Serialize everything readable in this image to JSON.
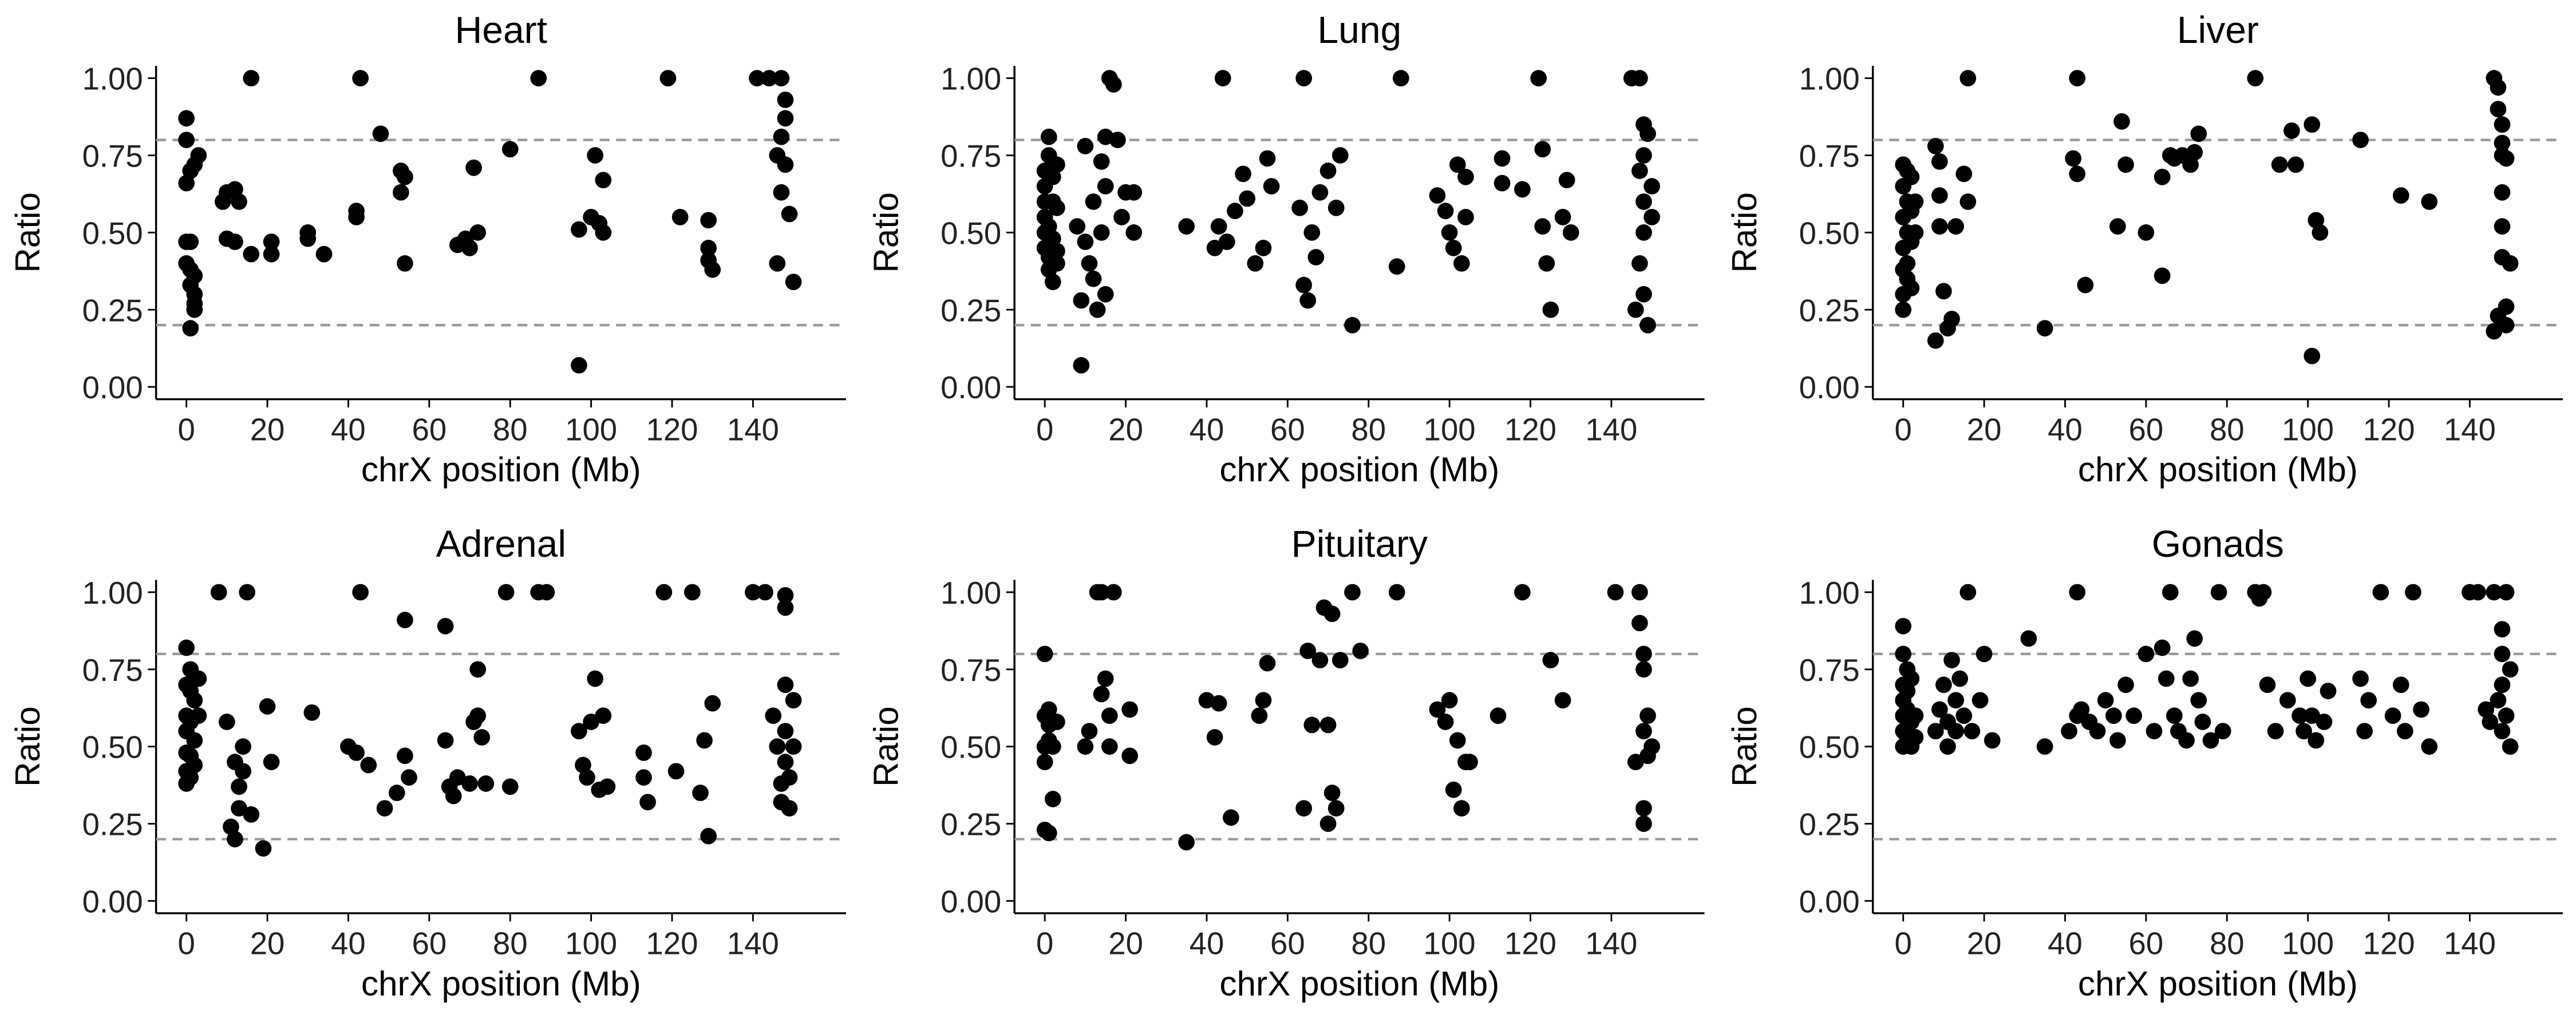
{
  "chart_data": [
    {
      "type": "scatter",
      "title": "Heart",
      "xlabel": "chrX position (Mb)",
      "ylabel": "Ratio",
      "color": "#000000",
      "x": [
        0,
        0,
        1,
        0,
        2,
        3,
        0,
        1,
        0,
        1,
        2,
        1,
        2,
        2,
        2,
        1,
        16,
        9,
        10,
        12,
        13,
        10,
        12,
        16,
        21,
        21,
        30,
        30,
        34,
        42,
        42,
        43,
        48,
        53,
        54,
        53,
        54,
        67,
        69,
        70,
        71,
        72,
        80,
        87,
        97,
        97,
        100,
        101,
        102,
        103,
        103,
        119,
        122,
        129,
        129,
        129,
        130,
        141,
        144,
        147,
        148,
        148,
        147,
        146,
        148,
        147,
        149,
        146,
        150
      ],
      "y": [
        0.87,
        0.8,
        0.7,
        0.66,
        0.72,
        0.75,
        0.47,
        0.47,
        0.4,
        0.38,
        0.36,
        0.33,
        0.3,
        0.27,
        0.25,
        0.19,
        1.0,
        0.6,
        0.63,
        0.64,
        0.6,
        0.48,
        0.47,
        0.43,
        0.47,
        0.43,
        0.5,
        0.48,
        0.43,
        0.57,
        0.55,
        1.0,
        0.82,
        0.7,
        0.68,
        0.63,
        0.4,
        0.46,
        0.48,
        0.45,
        0.71,
        0.5,
        0.77,
        1.0,
        0.07,
        0.51,
        0.55,
        0.75,
        0.53,
        0.67,
        0.5,
        1.0,
        0.55,
        0.54,
        0.45,
        0.41,
        0.38,
        1.0,
        1.0,
        1.0,
        0.93,
        0.87,
        0.81,
        0.75,
        0.72,
        0.63,
        0.56,
        0.4,
        0.34
      ],
      "xlim": [
        -7.5,
        163
      ],
      "ylim": [
        -0.04,
        1.04
      ],
      "xticks": [
        0,
        20,
        40,
        60,
        80,
        100,
        120,
        140
      ],
      "yticks": [
        {
          "value": 0,
          "label": "0.00"
        },
        {
          "value": 0.25,
          "label": "0.25"
        },
        {
          "value": 0.5,
          "label": "0.50"
        },
        {
          "value": 0.75,
          "label": "0.75"
        },
        {
          "value": 1,
          "label": "1.00"
        }
      ],
      "hlines": [
        0.2,
        0.8
      ]
    },
    {
      "type": "scatter",
      "title": "Lung",
      "xlabel": "chrX position (Mb)",
      "ylabel": "Ratio",
      "color": "#000000",
      "x": [
        0,
        0,
        0,
        0,
        0,
        0,
        1,
        1,
        1,
        1,
        1,
        2,
        2,
        2,
        2,
        3,
        3,
        3,
        3,
        8,
        9,
        9,
        10,
        10,
        11,
        12,
        12,
        13,
        14,
        14,
        15,
        15,
        15,
        16,
        17,
        18,
        19,
        20,
        22,
        22,
        35,
        42,
        43,
        44,
        45,
        47,
        49,
        50,
        52,
        54,
        55,
        56,
        63,
        64,
        64,
        65,
        66,
        67,
        68,
        70,
        72,
        73,
        76,
        87,
        88,
        97,
        99,
        100,
        101,
        102,
        103,
        104,
        104,
        113,
        113,
        118,
        122,
        123,
        123,
        124,
        125,
        128,
        129,
        130,
        145,
        146,
        147,
        147,
        147,
        148,
        148,
        148,
        148,
        148,
        149,
        149,
        150,
        150
      ],
      "y": [
        0.7,
        0.65,
        0.6,
        0.55,
        0.5,
        0.45,
        0.81,
        0.75,
        0.52,
        0.42,
        0.38,
        0.68,
        0.6,
        0.48,
        0.34,
        0.72,
        0.58,
        0.44,
        0.4,
        0.52,
        0.07,
        0.28,
        0.47,
        0.78,
        0.4,
        0.6,
        0.35,
        0.25,
        0.5,
        0.73,
        0.81,
        0.65,
        0.3,
        1.0,
        0.98,
        0.8,
        0.55,
        0.63,
        0.63,
        0.5,
        0.52,
        0.45,
        0.52,
        1.0,
        0.47,
        0.57,
        0.69,
        0.61,
        0.4,
        0.45,
        0.74,
        0.65,
        0.58,
        0.33,
        1.0,
        0.28,
        0.5,
        0.42,
        0.63,
        0.7,
        0.58,
        0.75,
        0.2,
        0.39,
        1.0,
        0.62,
        0.57,
        0.5,
        0.45,
        0.72,
        0.4,
        0.55,
        0.68,
        0.74,
        0.66,
        0.64,
        1.0,
        0.77,
        0.52,
        0.4,
        0.25,
        0.55,
        0.67,
        0.5,
        1.0,
        0.25,
        0.7,
        0.4,
        1.0,
        0.85,
        0.75,
        0.6,
        0.5,
        0.3,
        0.2,
        0.82,
        0.65,
        0.55
      ],
      "xlim": [
        -7.5,
        163
      ],
      "ylim": [
        -0.04,
        1.04
      ],
      "xticks": [
        0,
        20,
        40,
        60,
        80,
        100,
        120,
        140
      ],
      "yticks": [
        {
          "value": 0,
          "label": "0.00"
        },
        {
          "value": 0.25,
          "label": "0.25"
        },
        {
          "value": 0.5,
          "label": "0.50"
        },
        {
          "value": 0.75,
          "label": "0.75"
        },
        {
          "value": 1,
          "label": "1.00"
        }
      ],
      "hlines": [
        0.2,
        0.8
      ]
    },
    {
      "type": "scatter",
      "title": "Liver",
      "xlabel": "chrX position (Mb)",
      "ylabel": "Ratio",
      "color": "#000000",
      "x": [
        0,
        0,
        0,
        0,
        0,
        0,
        0,
        1,
        1,
        1,
        1,
        1,
        2,
        2,
        2,
        2,
        3,
        3,
        8,
        8,
        9,
        9,
        9,
        10,
        11,
        12,
        13,
        15,
        16,
        16,
        35,
        42,
        43,
        43,
        45,
        53,
        54,
        55,
        60,
        64,
        64,
        66,
        67,
        69,
        71,
        72,
        73,
        87,
        93,
        96,
        97,
        101,
        101,
        102,
        103,
        113,
        123,
        130,
        146,
        146,
        147,
        147,
        147,
        148,
        148,
        148,
        148,
        148,
        148,
        149,
        149,
        149,
        150
      ],
      "y": [
        0.72,
        0.65,
        0.55,
        0.45,
        0.38,
        0.3,
        0.25,
        0.7,
        0.6,
        0.5,
        0.4,
        0.35,
        0.68,
        0.57,
        0.47,
        0.32,
        0.6,
        0.5,
        0.78,
        0.15,
        0.73,
        0.62,
        0.52,
        0.31,
        0.19,
        0.22,
        0.52,
        0.69,
        0.6,
        1.0,
        0.19,
        0.74,
        0.69,
        1.0,
        0.33,
        0.52,
        0.86,
        0.72,
        0.5,
        0.36,
        0.68,
        0.75,
        0.74,
        0.75,
        0.72,
        0.76,
        0.82,
        1.0,
        0.72,
        0.83,
        0.72,
        0.1,
        0.85,
        0.54,
        0.5,
        0.8,
        0.62,
        0.6,
        0.18,
        1.0,
        0.97,
        0.9,
        0.23,
        0.85,
        0.79,
        0.75,
        0.63,
        0.52,
        0.42,
        0.26,
        0.2,
        0.74,
        0.4
      ],
      "xlim": [
        -7.5,
        163
      ],
      "ylim": [
        -0.04,
        1.04
      ],
      "xticks": [
        0,
        20,
        40,
        60,
        80,
        100,
        120,
        140
      ],
      "yticks": [
        {
          "value": 0,
          "label": "0.00"
        },
        {
          "value": 0.25,
          "label": "0.25"
        },
        {
          "value": 0.5,
          "label": "0.50"
        },
        {
          "value": 0.75,
          "label": "0.75"
        },
        {
          "value": 1,
          "label": "1.00"
        }
      ],
      "hlines": [
        0.2,
        0.8
      ]
    },
    {
      "type": "scatter",
      "title": "Adrenal",
      "xlabel": "chrX position (Mb)",
      "ylabel": "Ratio",
      "color": "#000000",
      "x": [
        0,
        0,
        0,
        0,
        0,
        0,
        0,
        1,
        1,
        1,
        1,
        1,
        2,
        2,
        2,
        3,
        3,
        8,
        10,
        11,
        12,
        12,
        13,
        13,
        14,
        14,
        15,
        16,
        19,
        20,
        21,
        31,
        40,
        42,
        43,
        45,
        49,
        52,
        54,
        54,
        55,
        64,
        64,
        65,
        66,
        67,
        70,
        71,
        72,
        72,
        73,
        74,
        79,
        80,
        87,
        89,
        97,
        98,
        99,
        100,
        101,
        102,
        103,
        104,
        113,
        113,
        114,
        118,
        121,
        125,
        127,
        128,
        129,
        130,
        140,
        143,
        145,
        146,
        147,
        147,
        148,
        148,
        148,
        148,
        148,
        149,
        149,
        150,
        150
      ],
      "y": [
        0.82,
        0.7,
        0.6,
        0.55,
        0.48,
        0.42,
        0.38,
        0.75,
        0.68,
        0.58,
        0.47,
        0.4,
        0.65,
        0.52,
        0.44,
        0.72,
        0.6,
        1.0,
        0.58,
        0.24,
        0.2,
        0.45,
        0.37,
        0.3,
        0.5,
        0.42,
        1.0,
        0.28,
        0.17,
        0.63,
        0.45,
        0.61,
        0.5,
        0.48,
        1.0,
        0.44,
        0.3,
        0.35,
        0.91,
        0.47,
        0.4,
        0.89,
        0.52,
        0.37,
        0.34,
        0.4,
        0.38,
        0.58,
        0.75,
        0.6,
        0.53,
        0.38,
        1.0,
        0.37,
        1.0,
        1.0,
        0.55,
        0.44,
        0.4,
        0.58,
        0.72,
        0.36,
        0.6,
        0.37,
        0.48,
        0.4,
        0.32,
        1.0,
        0.42,
        1.0,
        0.35,
        0.52,
        0.21,
        0.64,
        1.0,
        1.0,
        0.6,
        0.5,
        0.38,
        0.32,
        0.99,
        0.95,
        0.7,
        0.55,
        0.45,
        0.4,
        0.3,
        0.65,
        0.5
      ],
      "xlim": [
        -7.5,
        163
      ],
      "ylim": [
        -0.04,
        1.04
      ],
      "xticks": [
        0,
        20,
        40,
        60,
        80,
        100,
        120,
        140
      ],
      "yticks": [
        {
          "value": 0,
          "label": "0.00"
        },
        {
          "value": 0.25,
          "label": "0.25"
        },
        {
          "value": 0.5,
          "label": "0.50"
        },
        {
          "value": 0.75,
          "label": "0.75"
        },
        {
          "value": 1,
          "label": "1.00"
        }
      ],
      "hlines": [
        0.2,
        0.8
      ]
    },
    {
      "type": "scatter",
      "title": "Pituitary",
      "xlabel": "chrX position (Mb)",
      "ylabel": "Ratio",
      "color": "#000000",
      "x": [
        0,
        0,
        0,
        0,
        0,
        1,
        1,
        1,
        1,
        2,
        2,
        3,
        10,
        11,
        13,
        14,
        14,
        15,
        16,
        16,
        17,
        21,
        21,
        35,
        40,
        42,
        43,
        46,
        53,
        54,
        55,
        64,
        65,
        66,
        68,
        69,
        70,
        70,
        71,
        71,
        72,
        73,
        76,
        78,
        87,
        97,
        99,
        100,
        101,
        102,
        103,
        104,
        105,
        112,
        118,
        125,
        128,
        141,
        146,
        147,
        147,
        148,
        148,
        148,
        148,
        148,
        149,
        149,
        150
      ],
      "y": [
        0.8,
        0.6,
        0.5,
        0.45,
        0.23,
        0.57,
        0.52,
        0.22,
        0.62,
        0.5,
        0.33,
        0.58,
        0.5,
        0.55,
        1.0,
        1.0,
        0.67,
        0.72,
        0.5,
        0.6,
        1.0,
        0.62,
        0.47,
        0.19,
        0.65,
        0.53,
        0.64,
        0.27,
        0.6,
        0.65,
        0.77,
        0.3,
        0.81,
        0.57,
        0.78,
        0.95,
        0.57,
        0.25,
        0.93,
        0.35,
        0.3,
        0.78,
        1.0,
        0.81,
        1.0,
        0.62,
        0.58,
        0.65,
        0.36,
        0.52,
        0.3,
        0.45,
        0.45,
        0.6,
        1.0,
        0.78,
        0.65,
        1.0,
        0.45,
        1.0,
        0.9,
        0.8,
        0.75,
        0.55,
        0.3,
        0.25,
        0.6,
        0.47,
        0.5
      ],
      "xlim": [
        -7.5,
        163
      ],
      "ylim": [
        -0.04,
        1.04
      ],
      "xticks": [
        0,
        20,
        40,
        60,
        80,
        100,
        120,
        140
      ],
      "yticks": [
        {
          "value": 0,
          "label": "0.00"
        },
        {
          "value": 0.25,
          "label": "0.25"
        },
        {
          "value": 0.5,
          "label": "0.50"
        },
        {
          "value": 0.75,
          "label": "0.75"
        },
        {
          "value": 1,
          "label": "1.00"
        }
      ],
      "hlines": [
        0.2,
        0.8
      ]
    },
    {
      "type": "scatter",
      "title": "Gonads",
      "xlabel": "chrX position (Mb)",
      "ylabel": "Ratio",
      "color": "#000000",
      "x": [
        0,
        0,
        0,
        0,
        0,
        0,
        0,
        1,
        1,
        1,
        1,
        2,
        2,
        2,
        3,
        3,
        8,
        9,
        10,
        11,
        11,
        12,
        13,
        13,
        14,
        15,
        16,
        17,
        19,
        20,
        22,
        31,
        35,
        41,
        43,
        43,
        44,
        46,
        48,
        50,
        52,
        53,
        55,
        57,
        60,
        62,
        64,
        65,
        66,
        67,
        68,
        70,
        71,
        72,
        73,
        74,
        76,
        78,
        79,
        87,
        88,
        89,
        90,
        92,
        95,
        98,
        99,
        100,
        101,
        102,
        104,
        105,
        113,
        114,
        115,
        118,
        121,
        123,
        124,
        126,
        128,
        130,
        140,
        142,
        144,
        145,
        146,
        147,
        148,
        148,
        148,
        148,
        149,
        149,
        150,
        150
      ],
      "y": [
        0.89,
        0.8,
        0.7,
        0.65,
        0.6,
        0.55,
        0.5,
        0.75,
        0.62,
        0.52,
        0.68,
        0.58,
        0.5,
        0.72,
        0.6,
        0.53,
        0.55,
        0.62,
        0.7,
        0.58,
        0.5,
        0.78,
        0.65,
        0.55,
        0.72,
        0.6,
        1.0,
        0.55,
        0.65,
        0.8,
        0.52,
        0.85,
        0.5,
        0.55,
        0.6,
        1.0,
        0.62,
        0.58,
        0.55,
        0.65,
        0.6,
        0.52,
        0.7,
        0.6,
        0.8,
        0.55,
        0.82,
        0.72,
        1.0,
        0.6,
        0.55,
        0.52,
        0.72,
        0.85,
        0.65,
        0.58,
        0.52,
        1.0,
        0.55,
        1.0,
        0.98,
        1.0,
        0.7,
        0.55,
        0.65,
        0.6,
        0.55,
        0.72,
        0.6,
        0.52,
        0.58,
        0.68,
        0.72,
        0.55,
        0.65,
        1.0,
        0.6,
        0.7,
        0.55,
        1.0,
        0.62,
        0.5,
        1.0,
        1.0,
        0.62,
        0.58,
        1.0,
        0.65,
        0.88,
        0.8,
        0.7,
        0.55,
        1.0,
        0.6,
        0.5,
        0.75
      ],
      "xlim": [
        -7.5,
        163
      ],
      "ylim": [
        -0.04,
        1.04
      ],
      "xticks": [
        0,
        20,
        40,
        60,
        80,
        100,
        120,
        140
      ],
      "yticks": [
        {
          "value": 0,
          "label": "0.00"
        },
        {
          "value": 0.25,
          "label": "0.25"
        },
        {
          "value": 0.5,
          "label": "0.50"
        },
        {
          "value": 0.75,
          "label": "0.75"
        },
        {
          "value": 1,
          "label": "1.00"
        }
      ],
      "hlines": [
        0.2,
        0.8
      ]
    }
  ]
}
